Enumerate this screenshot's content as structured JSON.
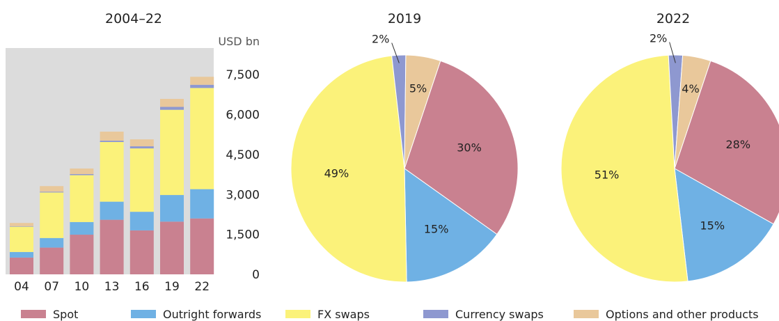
{
  "chart_data": [
    {
      "type": "bar",
      "stacked": true,
      "title": "2004–22",
      "ylabel": "USD bn",
      "categories": [
        "04",
        "07",
        "10",
        "13",
        "16",
        "19",
        "22"
      ],
      "ylim": [
        0,
        8500
      ],
      "yticks": [
        "0",
        "1,500",
        "3,000",
        "4,500",
        "6,000",
        "7,500"
      ],
      "grid": false,
      "series": [
        {
          "name": "Spot",
          "values": [
            630,
            1005,
            1490,
            2050,
            1650,
            1980,
            2100
          ]
        },
        {
          "name": "Outright forwards",
          "values": [
            210,
            360,
            475,
            680,
            700,
            1000,
            1100
          ]
        },
        {
          "name": "FX swaps",
          "values": [
            950,
            1710,
            1760,
            2240,
            2380,
            3200,
            3800
          ]
        },
        {
          "name": "Currency swaps",
          "values": [
            20,
            30,
            40,
            50,
            80,
            110,
            120
          ]
        },
        {
          "name": "Options and other products",
          "values": [
            120,
            210,
            210,
            340,
            260,
            300,
            300
          ]
        }
      ]
    },
    {
      "type": "pie",
      "title": "2019",
      "slices": [
        {
          "name": "Spot",
          "value": 30,
          "label": "30%"
        },
        {
          "name": "Outright forwards",
          "value": 15,
          "label": "15%"
        },
        {
          "name": "FX swaps",
          "value": 49,
          "label": "49%"
        },
        {
          "name": "Currency swaps",
          "value": 2,
          "label": "2%"
        },
        {
          "name": "Options and other products",
          "value": 5,
          "label": "5%"
        }
      ]
    },
    {
      "type": "pie",
      "title": "2022",
      "slices": [
        {
          "name": "Spot",
          "value": 28,
          "label": "28%"
        },
        {
          "name": "Outright forwards",
          "value": 15,
          "label": "15%"
        },
        {
          "name": "FX swaps",
          "value": 51,
          "label": "51%"
        },
        {
          "name": "Currency swaps",
          "value": 2,
          "label": "2%"
        },
        {
          "name": "Options and other products",
          "value": 4,
          "label": "4%"
        }
      ]
    }
  ],
  "legend": {
    "placement": "bottom",
    "items": [
      {
        "name": "Spot",
        "color": "#c98190"
      },
      {
        "name": "Outright forwards",
        "color": "#6fb1e4"
      },
      {
        "name": "FX swaps",
        "color": "#fbf27a"
      },
      {
        "name": "Currency swaps",
        "color": "#8e98d0"
      },
      {
        "name": "Options and other products",
        "color": "#e9c89b"
      }
    ]
  },
  "colors": {
    "Spot": "#c98190",
    "Outright forwards": "#6fb1e4",
    "FX swaps": "#fbf27a",
    "Currency swaps": "#8e98d0",
    "Options and other products": "#e9c89b",
    "plot_background": "#dcdcdc"
  }
}
